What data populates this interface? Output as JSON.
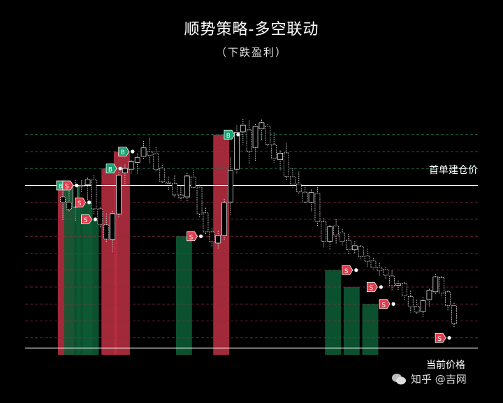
{
  "chart_data": {
    "type": "candlestick",
    "title": "顺势策略-多空联动",
    "subtitle": "（下跌盈利）",
    "annotations": {
      "entry_line": "首单建仓价",
      "current_line": "当前价格"
    },
    "watermark": "知乎 @吉网",
    "colors": {
      "long_bar": "#b32d3f",
      "short_bar": "#0d5a34",
      "entry_line": "#ffffff",
      "grid_green": "#1d7a5c",
      "grid_red": "#8a2d3a",
      "buy_tag": "#1aa06f",
      "sell_tag": "#e03c4c"
    },
    "candles": [
      [
        51.6,
        53.2,
        44.5,
        50.0
      ],
      [
        50.0,
        53.9,
        47.4,
        48.0
      ],
      [
        48.6,
        56.6,
        44.2,
        55.0
      ],
      [
        55.0,
        56.5,
        52.8,
        54.8
      ],
      [
        55.2,
        57.3,
        50.4,
        56.7
      ],
      [
        56.7,
        58.0,
        46.5,
        48.1
      ],
      [
        48.1,
        48.5,
        42.6,
        43.4
      ],
      [
        43.4,
        46.7,
        38.2,
        39.2
      ],
      [
        39.1,
        47.5,
        35.2,
        46.7
      ],
      [
        46.6,
        58.9,
        45.5,
        58.0
      ],
      [
        58.7,
        61.2,
        54.9,
        60.0
      ],
      [
        59.8,
        62.5,
        58.4,
        62.0
      ],
      [
        61.8,
        64.4,
        58.2,
        63.2
      ],
      [
        63.6,
        68.1,
        62.6,
        66.1
      ],
      [
        65.0,
        68.9,
        61.4,
        63.8
      ],
      [
        64.4,
        66.3,
        59.0,
        59.7
      ],
      [
        60.1,
        61.0,
        55.6,
        56.2
      ],
      [
        55.9,
        57.6,
        53.6,
        55.6
      ],
      [
        55.6,
        57.9,
        51.5,
        52.2
      ],
      [
        52.2,
        55.0,
        50.5,
        51.4
      ],
      [
        51.6,
        58.7,
        50.1,
        57.8
      ],
      [
        57.5,
        59.5,
        53.9,
        54.4
      ],
      [
        54.5,
        55.2,
        45.7,
        46.6
      ],
      [
        46.9,
        48.4,
        40.5,
        41.3
      ],
      [
        41.3,
        42.3,
        36.9,
        38.4
      ],
      [
        38.0,
        41.6,
        36.4,
        40.2
      ],
      [
        40.2,
        51.0,
        38.9,
        49.9
      ],
      [
        50.1,
        63.3,
        46.1,
        59.4
      ],
      [
        59.8,
        72.7,
        58.4,
        70.7
      ],
      [
        70.8,
        74.6,
        67.0,
        72.8
      ],
      [
        71.4,
        74.2,
        61.3,
        65.1
      ],
      [
        66.2,
        73.1,
        62.3,
        72.4
      ],
      [
        71.7,
        74.4,
        68.3,
        73.5
      ],
      [
        72.5,
        73.2,
        66.2,
        67.1
      ],
      [
        67.0,
        70.6,
        61.8,
        62.9
      ],
      [
        62.6,
        65.3,
        59.3,
        64.5
      ],
      [
        64.6,
        67.4,
        56.2,
        57.7
      ],
      [
        57.6,
        60.1,
        54.4,
        55.4
      ],
      [
        55.4,
        59.1,
        52.3,
        53.1
      ],
      [
        53.0,
        54.5,
        49.5,
        50.1
      ],
      [
        50.0,
        53.8,
        47.4,
        52.9
      ],
      [
        52.7,
        54.5,
        42.8,
        44.3
      ],
      [
        44.3,
        45.3,
        36.6,
        38.5
      ],
      [
        38.5,
        43.3,
        36.0,
        42.8
      ],
      [
        43.1,
        45.0,
        37.6,
        40.4
      ],
      [
        41.0,
        42.2,
        37.2,
        38.5
      ],
      [
        38.8,
        40.7,
        34.5,
        36.0
      ],
      [
        36.0,
        38.5,
        34.8,
        37.2
      ],
      [
        37.0,
        37.4,
        33.0,
        34.0
      ],
      [
        34.2,
        36.3,
        31.0,
        32.6
      ],
      [
        32.7,
        33.5,
        30.3,
        30.7
      ],
      [
        30.8,
        32.1,
        28.3,
        29.8
      ],
      [
        30.2,
        30.9,
        27.4,
        28.5
      ],
      [
        28.3,
        29.9,
        24.1,
        25.4
      ],
      [
        25.5,
        26.9,
        24.0,
        26.0
      ],
      [
        26.1,
        26.5,
        21.0,
        22.5
      ],
      [
        22.2,
        23.9,
        17.5,
        19.2
      ],
      [
        19.3,
        21.2,
        16.9,
        17.6
      ],
      [
        17.8,
        22.0,
        15.9,
        21.0
      ],
      [
        21.3,
        24.5,
        19.3,
        24.0
      ],
      [
        23.6,
        28.9,
        22.8,
        28.0
      ],
      [
        27.8,
        28.3,
        22.0,
        23.2
      ],
      [
        23.6,
        24.0,
        18.1,
        19.5
      ],
      [
        19.5,
        20.3,
        13.0,
        14.2
      ]
    ],
    "grid_levels": [
      70,
      65,
      60,
      55,
      50,
      45,
      40,
      35,
      30,
      25,
      20,
      15,
      10
    ],
    "entry_level": 55,
    "current_level": 7,
    "y_range": [
      5,
      85
    ],
    "orders": [
      {
        "type": "B",
        "candle": 1,
        "price": 55.0
      },
      {
        "type": "S",
        "candle": 2,
        "price": 55.0
      },
      {
        "type": "S",
        "candle": 4,
        "price": 50.0
      },
      {
        "type": "S",
        "candle": 5,
        "price": 45.0
      },
      {
        "type": "B",
        "candle": 9,
        "price": 60.0
      },
      {
        "type": "B",
        "candle": 11,
        "price": 65.0
      },
      {
        "type": "S",
        "candle": 22,
        "price": 40.0
      },
      {
        "type": "B",
        "candle": 28,
        "price": 70.0
      },
      {
        "type": "S",
        "candle": 47,
        "price": 30.0
      },
      {
        "type": "S",
        "candle": 51,
        "price": 25.0
      },
      {
        "type": "S",
        "candle": 53,
        "price": 20.0
      },
      {
        "type": "S",
        "candle": 62,
        "price": 10.0
      }
    ],
    "positions": [
      {
        "side": "long",
        "from_candle": 0,
        "to_candle": 1,
        "price": 55.0
      },
      {
        "side": "short",
        "from_candle": 1,
        "to_candle": 2,
        "price": 55.0
      },
      {
        "side": "short",
        "from_candle": 3,
        "to_candle": 4,
        "price": 50.0
      },
      {
        "side": "short",
        "from_candle": 4,
        "to_candle": 5,
        "price": 45.0
      },
      {
        "side": "long",
        "from_candle": 7,
        "to_candle": 8,
        "price": 60.0
      },
      {
        "side": "long",
        "from_candle": 9,
        "to_candle": 10,
        "price": 65.0
      },
      {
        "side": "short",
        "from_candle": 19,
        "to_candle": 20,
        "price": 40.0
      },
      {
        "side": "long",
        "from_candle": 25,
        "to_candle": 26,
        "price": 70.0
      },
      {
        "side": "short",
        "from_candle": 43,
        "to_candle": 44,
        "price": 30.0
      },
      {
        "side": "short",
        "from_candle": 46,
        "to_candle": 47,
        "price": 25.0
      },
      {
        "side": "short",
        "from_candle": 49,
        "to_candle": 50,
        "price": 20.0
      }
    ]
  }
}
